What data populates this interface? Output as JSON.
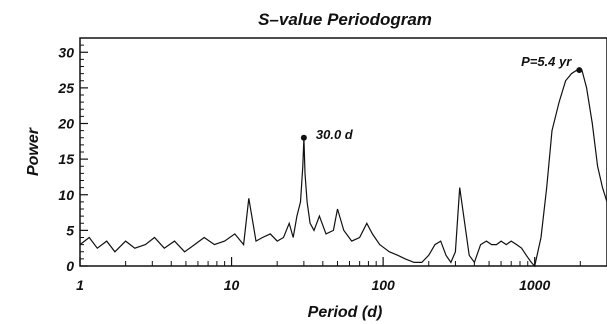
{
  "chart_data": {
    "type": "line",
    "title": "S–value Periodogram",
    "xlabel": "Period (d)",
    "ylabel": "Power",
    "x_scale": "log",
    "xlim": [
      1,
      3000
    ],
    "ylim": [
      0,
      32
    ],
    "x_ticks": [
      1,
      10,
      100,
      1000
    ],
    "x_tick_labels": [
      "1",
      "10",
      "100",
      "1000"
    ],
    "y_ticks": [
      0,
      5,
      10,
      15,
      20,
      25,
      30
    ],
    "y_tick_labels": [
      "0",
      "5",
      "10",
      "15",
      "20",
      "25",
      "30"
    ],
    "grid": false,
    "line_color": "#111111",
    "series": [
      {
        "x": [
          1.0,
          1.15,
          1.3,
          1.5,
          1.7,
          2.0,
          2.3,
          2.7,
          3.1,
          3.6,
          4.2,
          4.9,
          5.7,
          6.6,
          7.7,
          9.0,
          10.5,
          12.0,
          13.0,
          14.5,
          16.0,
          18.0,
          20.0,
          22.0,
          24.0,
          25.5,
          27.0,
          28.5,
          29.5,
          30.0,
          30.5,
          31.5,
          33.0,
          35.0,
          38.0,
          42.0,
          47.0,
          50.0,
          55.0,
          62.0,
          70.0,
          78.0,
          85.0,
          95.0,
          110.0,
          125.0,
          140.0,
          160.0,
          180.0,
          200.0,
          220.0,
          240.0,
          260.0,
          280.0,
          300.0,
          320.0,
          340.0,
          370.0,
          400.0,
          440.0,
          480.0,
          520.0,
          560.0,
          600.0,
          650.0,
          700.0,
          760.0,
          820.0,
          880.0,
          950.0,
          1000.0,
          1100.0,
          1200.0,
          1300.0,
          1450.0,
          1600.0,
          1750.0,
          1900.0,
          2050.0,
          2200.0,
          2400.0,
          2600.0,
          2800.0,
          3000.0
        ],
        "values": [
          3.0,
          4.0,
          2.5,
          3.5,
          2.0,
          3.5,
          2.5,
          3.0,
          4.0,
          2.5,
          3.5,
          2.0,
          3.0,
          4.0,
          3.0,
          3.5,
          4.5,
          3.0,
          9.5,
          3.5,
          4.0,
          4.5,
          3.5,
          4.0,
          6.0,
          4.0,
          7.0,
          9.0,
          14.0,
          18.0,
          13.0,
          9.0,
          6.0,
          5.0,
          7.0,
          4.5,
          5.0,
          8.0,
          5.0,
          3.5,
          4.0,
          6.0,
          4.5,
          3.0,
          2.0,
          1.5,
          1.0,
          0.5,
          0.5,
          1.5,
          3.0,
          3.5,
          1.5,
          0.5,
          2.0,
          11.0,
          7.0,
          1.5,
          0.5,
          3.0,
          3.5,
          3.0,
          3.0,
          3.5,
          3.0,
          3.5,
          3.0,
          2.5,
          1.5,
          0.5,
          0.0,
          4.0,
          11.0,
          19.0,
          23.0,
          26.0,
          27.0,
          27.5,
          27.5,
          25.0,
          20.0,
          14.0,
          11.0,
          9.0
        ]
      }
    ],
    "annotations": [
      {
        "text": "30.0 d",
        "x": 30.0,
        "y": 18.0
      },
      {
        "text": "P=5.4 yr",
        "x": 1970.0,
        "y": 27.5
      }
    ]
  }
}
